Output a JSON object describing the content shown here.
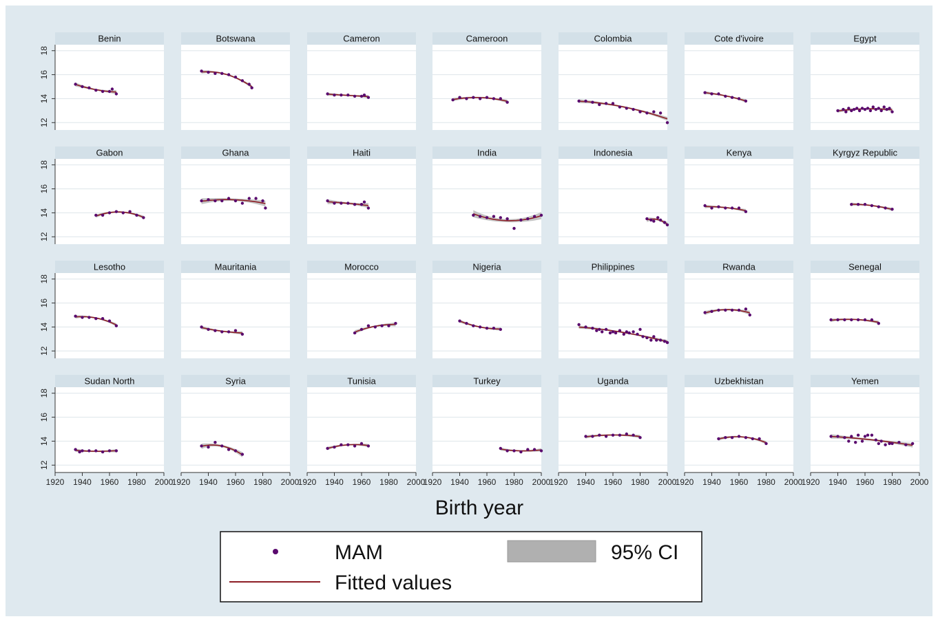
{
  "chart_data": {
    "type": "scatter",
    "xlabel": "Birth year",
    "ylabel": "",
    "xlim": [
      1920,
      2000
    ],
    "ylim": [
      12,
      18
    ],
    "xticks": [
      1920,
      1940,
      1960,
      1980,
      2000
    ],
    "yticks": [
      12,
      14,
      16,
      18
    ],
    "grid": true,
    "legend": {
      "position": "bottom",
      "entries": [
        {
          "label": "MAM",
          "kind": "marker"
        },
        {
          "label": "95% CI",
          "kind": "area"
        },
        {
          "label": "Fitted values",
          "kind": "line"
        }
      ]
    },
    "colors": {
      "background": "#dfe9ef",
      "plot_area": "#ffffff",
      "header": "#d3e0e8",
      "marker": "#5a0a6e",
      "fit_line": "#8c1c24",
      "ci_band": "#b0b0b0",
      "grid": "#dde5ea"
    },
    "panels": [
      {
        "title": "Benin",
        "x": [
          1935,
          1940,
          1945,
          1950,
          1955,
          1960,
          1962,
          1965
        ],
        "y": [
          15.2,
          15.0,
          14.9,
          14.7,
          14.6,
          14.6,
          14.8,
          14.4
        ]
      },
      {
        "title": "Botswana",
        "x": [
          1935,
          1940,
          1945,
          1950,
          1955,
          1960,
          1965,
          1970,
          1972
        ],
        "y": [
          16.3,
          16.2,
          16.1,
          16.1,
          16.0,
          15.8,
          15.5,
          15.2,
          14.9
        ]
      },
      {
        "title": "Cameron",
        "x": [
          1935,
          1940,
          1945,
          1950,
          1955,
          1960,
          1962,
          1965
        ],
        "y": [
          14.4,
          14.3,
          14.3,
          14.3,
          14.2,
          14.2,
          14.3,
          14.1
        ]
      },
      {
        "title": "Cameroon",
        "x": [
          1935,
          1940,
          1945,
          1950,
          1955,
          1960,
          1965,
          1970,
          1975
        ],
        "y": [
          13.9,
          14.1,
          14.0,
          14.1,
          14.0,
          14.1,
          14.0,
          14.0,
          13.7
        ]
      },
      {
        "title": "Colombia",
        "x": [
          1935,
          1940,
          1945,
          1950,
          1955,
          1960,
          1965,
          1970,
          1975,
          1980,
          1985,
          1990,
          1995,
          2000
        ],
        "y": [
          13.8,
          13.8,
          13.7,
          13.5,
          13.6,
          13.6,
          13.3,
          13.2,
          13.1,
          12.9,
          12.8,
          12.9,
          12.8,
          12.0
        ]
      },
      {
        "title": "Cote d'ivoire",
        "x": [
          1935,
          1940,
          1945,
          1950,
          1955,
          1960,
          1965
        ],
        "y": [
          14.5,
          14.4,
          14.4,
          14.2,
          14.1,
          14.0,
          13.8
        ]
      },
      {
        "title": "Egypt",
        "x": [
          1940,
          1944,
          1946,
          1948,
          1950,
          1952,
          1954,
          1956,
          1958,
          1960,
          1962,
          1964,
          1966,
          1968,
          1970,
          1972,
          1974,
          1976,
          1978,
          1980
        ],
        "y": [
          13.0,
          13.1,
          12.9,
          13.2,
          13.0,
          13.1,
          13.2,
          13.0,
          13.2,
          13.1,
          13.2,
          13.0,
          13.3,
          13.1,
          13.2,
          13.0,
          13.3,
          13.1,
          13.2,
          12.9
        ]
      },
      {
        "title": "Gabon",
        "x": [
          1950,
          1955,
          1960,
          1965,
          1970,
          1975,
          1980,
          1985
        ],
        "y": [
          13.8,
          13.8,
          14.0,
          14.1,
          14.0,
          14.1,
          13.8,
          13.6
        ]
      },
      {
        "title": "Ghana",
        "x": [
          1935,
          1940,
          1945,
          1950,
          1955,
          1960,
          1965,
          1970,
          1975,
          1980,
          1982
        ],
        "y": [
          15.0,
          15.1,
          15.0,
          15.0,
          15.2,
          15.0,
          14.8,
          15.2,
          15.2,
          15.0,
          14.4
        ]
      },
      {
        "title": "Haiti",
        "x": [
          1935,
          1940,
          1945,
          1950,
          1955,
          1960,
          1962,
          1965
        ],
        "y": [
          15.0,
          14.8,
          14.8,
          14.8,
          14.7,
          14.7,
          14.9,
          14.4
        ]
      },
      {
        "title": "India",
        "x": [
          1950,
          1955,
          1960,
          1965,
          1970,
          1975,
          1980,
          1985,
          1990,
          1995,
          2000
        ],
        "y": [
          13.8,
          13.7,
          13.6,
          13.7,
          13.6,
          13.5,
          12.7,
          13.4,
          13.5,
          13.7,
          13.8
        ]
      },
      {
        "title": "Indonesia",
        "x": [
          1985,
          1988,
          1990,
          1993,
          1995,
          1998,
          2000
        ],
        "y": [
          13.5,
          13.4,
          13.3,
          13.6,
          13.4,
          13.2,
          13.0
        ]
      },
      {
        "title": "Kenya",
        "x": [
          1935,
          1940,
          1945,
          1950,
          1955,
          1960,
          1965
        ],
        "y": [
          14.6,
          14.4,
          14.5,
          14.4,
          14.4,
          14.4,
          14.1
        ]
      },
      {
        "title": "Kyrgyz Republic",
        "x": [
          1950,
          1955,
          1960,
          1965,
          1970,
          1975,
          1980
        ],
        "y": [
          14.7,
          14.7,
          14.7,
          14.6,
          14.5,
          14.4,
          14.3
        ]
      },
      {
        "title": "Lesotho",
        "x": [
          1935,
          1940,
          1945,
          1950,
          1955,
          1960,
          1965
        ],
        "y": [
          14.9,
          14.8,
          14.8,
          14.7,
          14.7,
          14.5,
          14.1
        ]
      },
      {
        "title": "Mauritania",
        "x": [
          1935,
          1940,
          1945,
          1950,
          1955,
          1960,
          1965
        ],
        "y": [
          14.0,
          13.8,
          13.7,
          13.6,
          13.6,
          13.7,
          13.4
        ]
      },
      {
        "title": "Morocco",
        "x": [
          1955,
          1960,
          1965,
          1970,
          1975,
          1980,
          1985
        ],
        "y": [
          13.5,
          13.8,
          14.1,
          14.0,
          14.1,
          14.1,
          14.3
        ]
      },
      {
        "title": "Nigeria",
        "x": [
          1940,
          1945,
          1950,
          1955,
          1960,
          1965,
          1970
        ],
        "y": [
          14.5,
          14.3,
          14.1,
          14.0,
          13.9,
          13.9,
          13.8
        ]
      },
      {
        "title": "Philippines",
        "x": [
          1935,
          1940,
          1945,
          1948,
          1950,
          1952,
          1955,
          1958,
          1960,
          1962,
          1965,
          1968,
          1970,
          1972,
          1975,
          1978,
          1980,
          1982,
          1985,
          1988,
          1990,
          1992,
          1995,
          1998,
          2000
        ],
        "y": [
          14.2,
          14.0,
          13.9,
          13.7,
          13.8,
          13.6,
          13.8,
          13.5,
          13.6,
          13.5,
          13.7,
          13.4,
          13.6,
          13.5,
          13.6,
          13.4,
          13.8,
          13.2,
          13.1,
          12.9,
          13.2,
          12.9,
          12.9,
          12.8,
          12.7
        ]
      },
      {
        "title": "Rwanda",
        "x": [
          1935,
          1940,
          1945,
          1950,
          1955,
          1960,
          1965,
          1968
        ],
        "y": [
          15.2,
          15.3,
          15.4,
          15.4,
          15.4,
          15.4,
          15.5,
          15.0
        ]
      },
      {
        "title": "Senegal",
        "x": [
          1935,
          1940,
          1945,
          1950,
          1955,
          1960,
          1965,
          1970
        ],
        "y": [
          14.6,
          14.6,
          14.6,
          14.6,
          14.6,
          14.6,
          14.6,
          14.3
        ]
      },
      {
        "title": "Sudan North",
        "x": [
          1935,
          1938,
          1940,
          1945,
          1950,
          1955,
          1960,
          1965
        ],
        "y": [
          13.3,
          13.1,
          13.2,
          13.2,
          13.2,
          13.1,
          13.2,
          13.2
        ]
      },
      {
        "title": "Syria",
        "x": [
          1935,
          1940,
          1945,
          1950,
          1955,
          1960,
          1965
        ],
        "y": [
          13.6,
          13.5,
          13.9,
          13.6,
          13.3,
          13.2,
          12.9
        ]
      },
      {
        "title": "Tunisia",
        "x": [
          1935,
          1940,
          1945,
          1950,
          1955,
          1960,
          1965
        ],
        "y": [
          13.4,
          13.5,
          13.7,
          13.7,
          13.6,
          13.8,
          13.6
        ]
      },
      {
        "title": "Turkey",
        "x": [
          1970,
          1975,
          1980,
          1985,
          1990,
          1995,
          2000
        ],
        "y": [
          13.4,
          13.2,
          13.2,
          13.1,
          13.3,
          13.3,
          13.2
        ]
      },
      {
        "title": "Uganda",
        "x": [
          1940,
          1945,
          1950,
          1955,
          1960,
          1965,
          1970,
          1975,
          1980
        ],
        "y": [
          14.4,
          14.4,
          14.5,
          14.4,
          14.5,
          14.5,
          14.6,
          14.5,
          14.3
        ]
      },
      {
        "title": "Uzbekhistan",
        "x": [
          1945,
          1950,
          1955,
          1960,
          1965,
          1970,
          1975,
          1980
        ],
        "y": [
          14.2,
          14.3,
          14.3,
          14.4,
          14.3,
          14.2,
          14.2,
          13.8
        ]
      },
      {
        "title": "Yemen",
        "x": [
          1935,
          1940,
          1945,
          1948,
          1950,
          1953,
          1955,
          1958,
          1960,
          1962,
          1965,
          1968,
          1970,
          1972,
          1975,
          1978,
          1980,
          1985,
          1990,
          1995
        ],
        "y": [
          14.4,
          14.4,
          14.3,
          14.0,
          14.4,
          13.9,
          14.5,
          14.0,
          14.4,
          14.5,
          14.5,
          14.1,
          13.8,
          14.0,
          13.7,
          13.8,
          13.8,
          13.9,
          13.7,
          13.8
        ]
      }
    ]
  }
}
